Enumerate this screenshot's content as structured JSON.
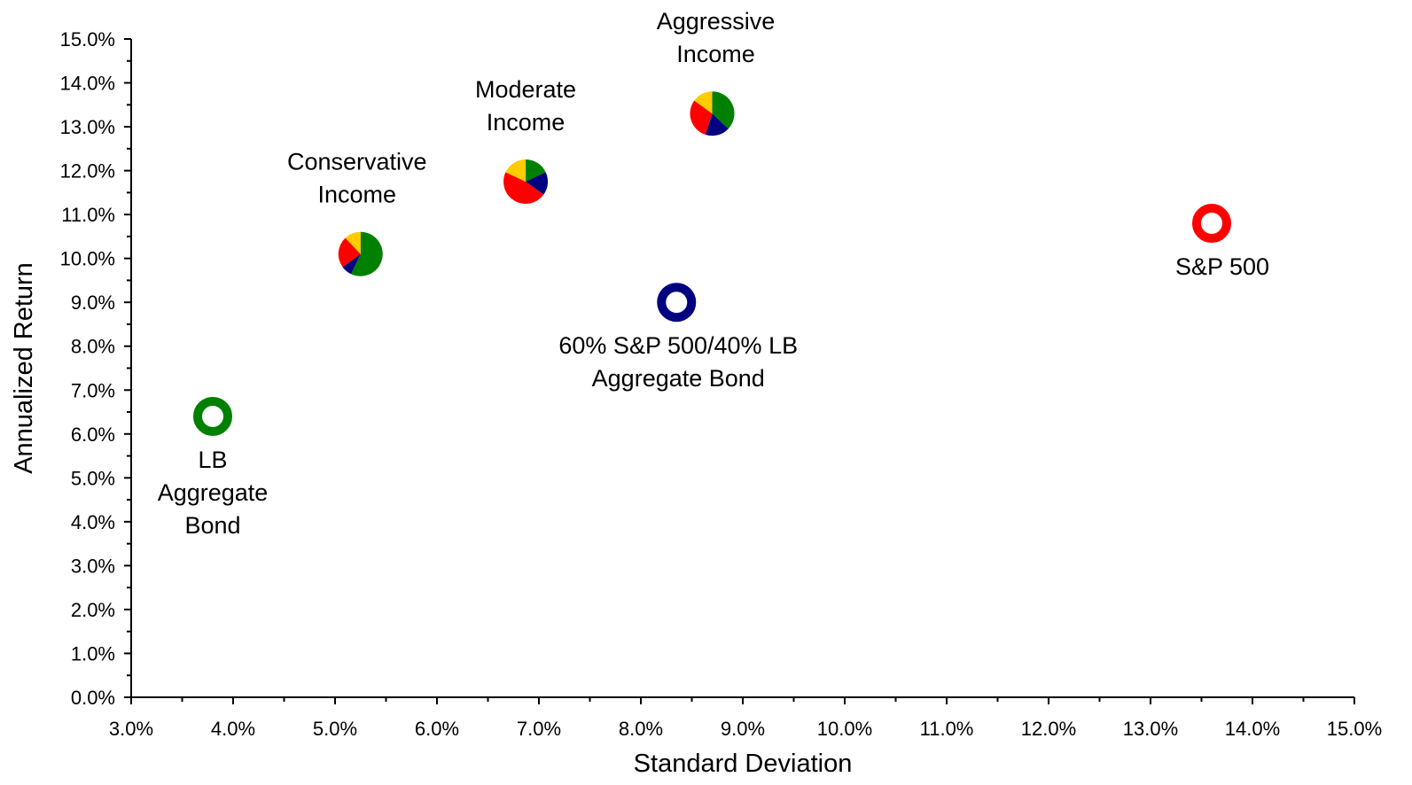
{
  "chart_data": {
    "type": "scatter",
    "title": "",
    "xlabel": "Standard Deviation",
    "ylabel": "Annualized Return",
    "xlim": [
      3.0,
      15.0
    ],
    "ylim": [
      0.0,
      15.0
    ],
    "grid": false,
    "x_ticks": [
      "3.0%",
      "4.0%",
      "5.0%",
      "6.0%",
      "7.0%",
      "8.0%",
      "9.0%",
      "10.0%",
      "11.0%",
      "12.0%",
      "13.0%",
      "14.0%",
      "15.0%"
    ],
    "y_ticks": [
      "0.0%",
      "1.0%",
      "2.0%",
      "3.0%",
      "4.0%",
      "5.0%",
      "6.0%",
      "7.0%",
      "8.0%",
      "9.0%",
      "10.0%",
      "11.0%",
      "12.0%",
      "13.0%",
      "14.0%",
      "15.0%"
    ],
    "colors": {
      "green": "#008000",
      "navy": "#000080",
      "red": "#ff0000",
      "yellow": "#ffcc00"
    },
    "points": [
      {
        "id": "lb-aggregate-bond",
        "marker": "ring",
        "color": "#008000",
        "x": 3.8,
        "y": 6.4,
        "label_lines": [
          "LB",
          "Aggregate",
          "Bond"
        ],
        "label_position": "below"
      },
      {
        "id": "sp-500",
        "marker": "ring",
        "color": "#ff0000",
        "x": 13.6,
        "y": 10.8,
        "label_lines": [
          "S&P 500"
        ],
        "label_position": "below"
      },
      {
        "id": "60-40",
        "marker": "ring",
        "color": "#000080",
        "x": 8.35,
        "y": 9.0,
        "label_lines": [
          "60% S&P 500/40% LB",
          "Aggregate Bond"
        ],
        "label_position": "below"
      },
      {
        "id": "conservative-income",
        "marker": "pie",
        "x": 5.25,
        "y": 10.1,
        "label_lines": [
          "Conservative",
          "Income"
        ],
        "label_position": "above",
        "slices": [
          {
            "color": "#008000",
            "value": 57
          },
          {
            "color": "#000080",
            "value": 8
          },
          {
            "color": "#ff0000",
            "value": 23
          },
          {
            "color": "#ffcc00",
            "value": 12
          }
        ]
      },
      {
        "id": "moderate-income",
        "marker": "pie",
        "x": 6.87,
        "y": 11.75,
        "label_lines": [
          "Moderate",
          "Income"
        ],
        "label_position": "above",
        "slices": [
          {
            "color": "#008000",
            "value": 18
          },
          {
            "color": "#000080",
            "value": 17
          },
          {
            "color": "#ff0000",
            "value": 47
          },
          {
            "color": "#ffcc00",
            "value": 18
          }
        ]
      },
      {
        "id": "aggressive-income",
        "marker": "pie",
        "x": 8.7,
        "y": 13.3,
        "label_lines": [
          "Aggressive",
          "Income"
        ],
        "label_position": "above",
        "slices": [
          {
            "color": "#008000",
            "value": 37
          },
          {
            "color": "#000080",
            "value": 18
          },
          {
            "color": "#ff0000",
            "value": 30
          },
          {
            "color": "#ffcc00",
            "value": 15
          }
        ]
      }
    ]
  }
}
